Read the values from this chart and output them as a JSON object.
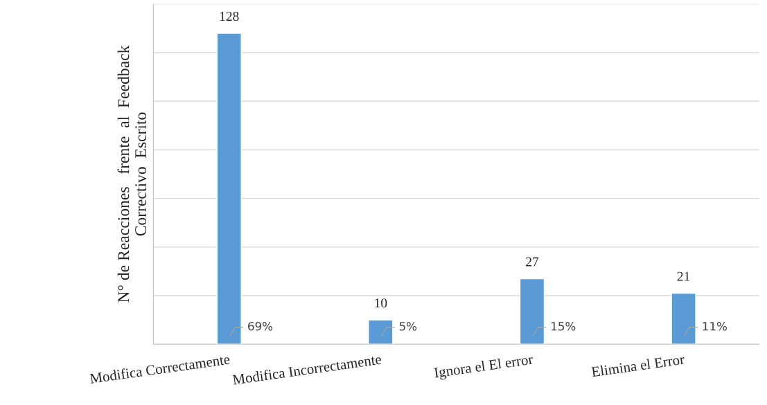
{
  "chart_data": {
    "type": "bar",
    "ylabel": "N° de Reacciones   frente  al  Feedback\nCorrectivo  Escrito",
    "categories": [
      "Modifica Correctamente",
      "Modifica Incorrectamente",
      "Ignora el El error",
      "Elimina el Error"
    ],
    "values": [
      128,
      10,
      27,
      21
    ],
    "color": "#5b9bd5",
    "ylim": [
      0,
      140
    ],
    "yticks": [
      {
        "value": 0,
        "label": null
      },
      {
        "value": 20,
        "label": null
      },
      {
        "value": 40,
        "label": null
      },
      {
        "value": 60,
        "label": null
      },
      {
        "value": 80,
        "label": null
      },
      {
        "value": 100,
        "label": null
      },
      {
        "value": 120,
        "label": null
      },
      {
        "value": 140,
        "label": null
      }
    ],
    "grid": "y",
    "tick_labels": "x",
    "data_labels": true,
    "annotations": [
      "69%",
      "5%",
      "15%",
      "11%"
    ]
  }
}
